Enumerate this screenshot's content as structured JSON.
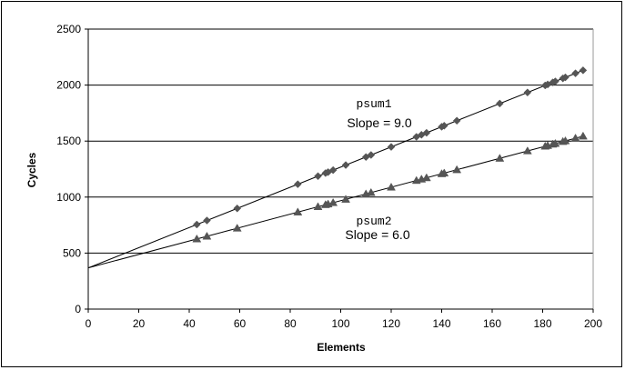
{
  "chart_data": {
    "type": "scatter",
    "xlabel": "Elements",
    "ylabel": "Cycles",
    "xlim": [
      0,
      200
    ],
    "ylim": [
      0,
      2500
    ],
    "xticks": [
      "0",
      "20",
      "40",
      "60",
      "80",
      "100",
      "120",
      "140",
      "160",
      "180",
      "200"
    ],
    "yticks": [
      "0",
      "500",
      "1000",
      "1500",
      "2000",
      "2500"
    ],
    "grid": "horizontal",
    "series": [
      {
        "name": "psum1",
        "marker": "diamond",
        "color": "#555555",
        "fit": {
          "slope": 9.0,
          "intercept": 368
        },
        "x": [
          43,
          47,
          59,
          83,
          91,
          94,
          95,
          97,
          102,
          110,
          112,
          120,
          130,
          132,
          134,
          140,
          141,
          146,
          163,
          174,
          181,
          182,
          184,
          185,
          188,
          189,
          193,
          196
        ],
        "y": [
          755,
          791,
          899,
          1115,
          1187,
          1214,
          1223,
          1241,
          1286,
          1358,
          1376,
          1448,
          1538,
          1556,
          1574,
          1628,
          1637,
          1682,
          1835,
          1934,
          1997,
          2006,
          2024,
          2033,
          2060,
          2069,
          2105,
          2132
        ]
      },
      {
        "name": "psum2",
        "marker": "triangle",
        "color": "#555555",
        "fit": {
          "slope": 6.0,
          "intercept": 368
        },
        "x": [
          43,
          47,
          59,
          83,
          91,
          94,
          95,
          97,
          102,
          110,
          112,
          120,
          130,
          132,
          134,
          140,
          141,
          146,
          163,
          174,
          181,
          182,
          184,
          185,
          188,
          189,
          193,
          196
        ],
        "y": [
          626,
          650,
          722,
          866,
          914,
          932,
          938,
          950,
          980,
          1028,
          1040,
          1088,
          1148,
          1160,
          1172,
          1208,
          1214,
          1244,
          1346,
          1412,
          1454,
          1460,
          1472,
          1478,
          1496,
          1502,
          1526,
          1544
        ]
      }
    ],
    "annotations": [
      {
        "series": "psum1",
        "name": "psum1",
        "slope_text": "Slope = 9.0"
      },
      {
        "series": "psum2",
        "name": "psum2",
        "slope_text": "Slope = 6.0"
      }
    ]
  }
}
